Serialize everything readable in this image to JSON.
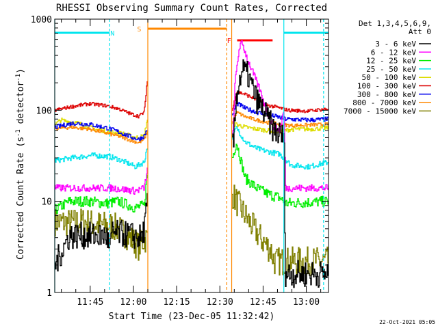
{
  "chart_data": {
    "type": "line",
    "title": "RHESSI Observing Summary Count Rates, Corrected",
    "xlabel": "Start Time (23-Dec-05 11:32:42)",
    "ylabel_main": "Corrected Count Rate (s",
    "ylabel_sup1": "-1",
    "ylabel_mid": " detector",
    "ylabel_sup2": "-1",
    "ylabel_end": ")",
    "y_scale": "log",
    "ylim": [
      1,
      1000
    ],
    "y_ticks": [
      {
        "value": 1,
        "label": "1"
      },
      {
        "value": 10,
        "label": "10"
      },
      {
        "value": 100,
        "label": "100"
      },
      {
        "value": 1000,
        "label": "1000"
      }
    ],
    "xlim_minutes": [
      0,
      95
    ],
    "x_ticks": [
      {
        "minute": 12.3,
        "label": "11:45"
      },
      {
        "minute": 27.3,
        "label": "12:00"
      },
      {
        "minute": 42.3,
        "label": "12:15"
      },
      {
        "minute": 57.3,
        "label": "12:30"
      },
      {
        "minute": 72.3,
        "label": "12:45"
      },
      {
        "minute": 87.3,
        "label": "13:00"
      }
    ],
    "legend": {
      "placement": "right",
      "header": [
        "Det 1,3,4,5,6,9,",
        "Att 0"
      ],
      "entries": [
        {
          "label": "3 - 6 keV",
          "color": "#000000"
        },
        {
          "label": "6 - 12 keV",
          "color": "#ff00ff"
        },
        {
          "label": "12 - 25 keV",
          "color": "#00ee00"
        },
        {
          "label": "25 - 50 keV",
          "color": "#00e5ee"
        },
        {
          "label": "50 - 100 keV",
          "color": "#dddd00"
        },
        {
          "label": "100 - 300 keV",
          "color": "#dd0000"
        },
        {
          "label": "300 - 800 keV",
          "color": "#0000ee"
        },
        {
          "label": "800 - 7000 keV",
          "color": "#ff8800"
        },
        {
          "label": "7000 - 15000 keV",
          "color": "#808000"
        }
      ]
    },
    "intervals": [
      {
        "label": "N",
        "color": "#00e5ee",
        "start": 0,
        "end": 19,
        "label_at": 20
      },
      {
        "label": "N",
        "color": "#00e5ee",
        "start": 79.5,
        "end": 95,
        "label_at": null
      },
      {
        "label": "S",
        "color": "#ff8800",
        "start": 32.3,
        "end": 59.7,
        "label_at": 29.3
      },
      {
        "label": "F",
        "color": "#ff0000",
        "start": 63.3,
        "end": 75.6,
        "label_at": 60.5
      }
    ],
    "vertical_markers": [
      {
        "minute": 0,
        "color": "#00e5ee",
        "style": "solid"
      },
      {
        "minute": 19,
        "color": "#00e5ee",
        "style": "dashed"
      },
      {
        "minute": 32.3,
        "color": "#ff8800",
        "style": "solid"
      },
      {
        "minute": 59.7,
        "color": "#ff8800",
        "style": "dashed"
      },
      {
        "minute": 61.4,
        "color": "#ff8800",
        "style": "solid"
      },
      {
        "minute": 79.5,
        "color": "#00e5ee",
        "style": "solid"
      },
      {
        "minute": 93.3,
        "color": "#00e5ee",
        "style": "dashed"
      }
    ],
    "series": [
      {
        "color": "#000000",
        "noise": 0.15,
        "gap": [
          32.3,
          61.4
        ],
        "points": [
          [
            0,
            2
          ],
          [
            5,
            4.2
          ],
          [
            18,
            4.2
          ],
          [
            19,
            3
          ],
          [
            20,
            4.5
          ],
          [
            26,
            4.3
          ],
          [
            29,
            4
          ],
          [
            30,
            4
          ],
          [
            31,
            5
          ],
          [
            32,
            9
          ],
          [
            62,
            45
          ],
          [
            63,
            150
          ],
          [
            65,
            280
          ],
          [
            67,
            240
          ],
          [
            70,
            130
          ],
          [
            73,
            90
          ],
          [
            76,
            60
          ],
          [
            78,
            55
          ],
          [
            79.5,
            50
          ],
          [
            80,
            1.6
          ],
          [
            95,
            1.6
          ]
        ]
      },
      {
        "color": "#ff00ff",
        "noise": 0.04,
        "gap": [
          32.3,
          61.4
        ],
        "points": [
          [
            0,
            14
          ],
          [
            10,
            14
          ],
          [
            20,
            14
          ],
          [
            28,
            13
          ],
          [
            31,
            14
          ],
          [
            32,
            22
          ],
          [
            61.8,
            55
          ],
          [
            62.5,
            200
          ],
          [
            64,
            500
          ],
          [
            65,
            540
          ],
          [
            67,
            350
          ],
          [
            71,
            170
          ],
          [
            74,
            90
          ],
          [
            76,
            65
          ],
          [
            78,
            60
          ],
          [
            79.5,
            100
          ],
          [
            80,
            14
          ],
          [
            95,
            14
          ]
        ]
      },
      {
        "color": "#00ee00",
        "noise": 0.06,
        "gap": [
          32.3,
          61.4
        ],
        "points": [
          [
            0,
            8
          ],
          [
            5,
            10
          ],
          [
            12,
            10
          ],
          [
            18,
            9.5
          ],
          [
            22,
            10
          ],
          [
            28,
            8.5
          ],
          [
            31,
            9
          ],
          [
            32,
            20
          ],
          [
            61.6,
            30
          ],
          [
            63,
            45
          ],
          [
            66,
            18
          ],
          [
            70,
            14
          ],
          [
            74,
            12
          ],
          [
            78,
            11
          ],
          [
            80,
            9.5
          ],
          [
            95,
            10
          ]
        ]
      },
      {
        "color": "#00e5ee",
        "noise": 0.03,
        "gap": [
          32.3,
          61.4
        ],
        "points": [
          [
            0,
            28
          ],
          [
            6,
            30
          ],
          [
            13,
            32
          ],
          [
            19,
            31
          ],
          [
            22,
            29
          ],
          [
            28,
            24
          ],
          [
            31,
            27
          ],
          [
            32,
            40
          ],
          [
            61.6,
            50
          ],
          [
            63,
            65
          ],
          [
            66,
            45
          ],
          [
            70,
            38
          ],
          [
            74,
            35
          ],
          [
            78,
            33
          ],
          [
            82,
            25
          ],
          [
            88,
            24
          ],
          [
            95,
            27
          ]
        ]
      },
      {
        "color": "#dddd00",
        "noise": 0.025,
        "gap": [
          32.3,
          61.4
        ],
        "points": [
          [
            0,
            70
          ],
          [
            2,
            78
          ],
          [
            8,
            72
          ],
          [
            14,
            62
          ],
          [
            19,
            58
          ],
          [
            24,
            55
          ],
          [
            28,
            50
          ],
          [
            31,
            52
          ],
          [
            32,
            80
          ],
          [
            61.6,
            70
          ],
          [
            63,
            70
          ],
          [
            66,
            65
          ],
          [
            70,
            62
          ],
          [
            74,
            60
          ],
          [
            78,
            58
          ],
          [
            82,
            62
          ],
          [
            88,
            62
          ],
          [
            95,
            64
          ]
        ]
      },
      {
        "color": "#dd0000",
        "noise": 0.02,
        "gap": [
          32.3,
          61.4
        ],
        "points": [
          [
            0,
            100
          ],
          [
            6,
            110
          ],
          [
            12,
            118
          ],
          [
            18,
            112
          ],
          [
            22,
            104
          ],
          [
            26,
            92
          ],
          [
            29,
            86
          ],
          [
            31,
            95
          ],
          [
            32,
            210
          ],
          [
            61.6,
            100
          ],
          [
            63,
            160
          ],
          [
            66,
            150
          ],
          [
            70,
            130
          ],
          [
            73,
            115
          ],
          [
            77,
            108
          ],
          [
            81,
            100
          ],
          [
            88,
            98
          ],
          [
            95,
            104
          ]
        ]
      },
      {
        "color": "#0000ee",
        "noise": 0.025,
        "gap": [
          32.3,
          61.4
        ],
        "points": [
          [
            0,
            65
          ],
          [
            6,
            72
          ],
          [
            12,
            70
          ],
          [
            18,
            64
          ],
          [
            22,
            58
          ],
          [
            27,
            50
          ],
          [
            29,
            48
          ],
          [
            31,
            52
          ],
          [
            32,
            62
          ],
          [
            61.6,
            85
          ],
          [
            63,
            120
          ],
          [
            66,
            105
          ],
          [
            70,
            95
          ],
          [
            73,
            90
          ],
          [
            77,
            85
          ],
          [
            80,
            80
          ],
          [
            88,
            78
          ],
          [
            95,
            80
          ]
        ]
      },
      {
        "color": "#ff8800",
        "noise": 0.02,
        "gap": [
          32.3,
          61.4
        ],
        "points": [
          [
            0,
            63
          ],
          [
            6,
            65
          ],
          [
            12,
            62
          ],
          [
            18,
            56
          ],
          [
            22,
            52
          ],
          [
            27,
            46
          ],
          [
            29,
            44
          ],
          [
            31,
            48
          ],
          [
            32,
            58
          ],
          [
            61.6,
            75
          ],
          [
            63,
            95
          ],
          [
            66,
            85
          ],
          [
            70,
            78
          ],
          [
            74,
            73
          ],
          [
            78,
            70
          ],
          [
            82,
            68
          ],
          [
            88,
            69
          ],
          [
            95,
            70
          ]
        ]
      },
      {
        "color": "#808000",
        "noise": 0.16,
        "gap": [
          32.3,
          61.4
        ],
        "points": [
          [
            0,
            6
          ],
          [
            5,
            5.8
          ],
          [
            10,
            6
          ],
          [
            15,
            5.5
          ],
          [
            19,
            5.5
          ],
          [
            22,
            5
          ],
          [
            26,
            4
          ],
          [
            29,
            3.2
          ],
          [
            31,
            3.8
          ],
          [
            32,
            4
          ],
          [
            61.6,
            12
          ],
          [
            63,
            10
          ],
          [
            66,
            7
          ],
          [
            69,
            5
          ],
          [
            72,
            3.7
          ],
          [
            75,
            2.9
          ],
          [
            76,
            2.2
          ],
          [
            95,
            2.2
          ]
        ]
      }
    ]
  },
  "footer": {
    "timestamp": "22-Oct-2021 05:05"
  }
}
